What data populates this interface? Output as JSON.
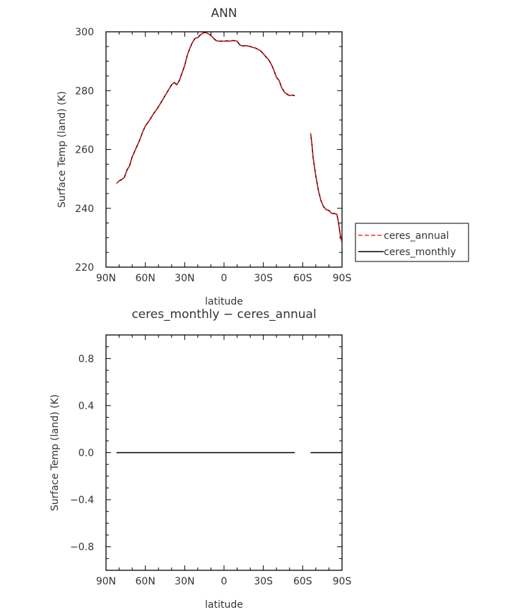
{
  "chart_data": [
    {
      "type": "line",
      "title": "ANN",
      "xlabel": "latitude",
      "ylabel": "Surface Temp (land) (K)",
      "xlim": [
        90,
        -90
      ],
      "ylim": [
        220,
        300
      ],
      "x_ticks": [
        {
          "value": 90,
          "label": "90N"
        },
        {
          "value": 60,
          "label": "60N"
        },
        {
          "value": 30,
          "label": "30N"
        },
        {
          "value": 0,
          "label": "0"
        },
        {
          "value": -30,
          "label": "30S"
        },
        {
          "value": -60,
          "label": "60S"
        },
        {
          "value": -90,
          "label": "90S"
        }
      ],
      "y_ticks": [
        {
          "value": 220,
          "label": "220"
        },
        {
          "value": 240,
          "label": "240"
        },
        {
          "value": 260,
          "label": "260"
        },
        {
          "value": 280,
          "label": "280"
        },
        {
          "value": 300,
          "label": "300"
        }
      ],
      "legend": {
        "position": "right"
      },
      "series": [
        {
          "name": "ceres_annual",
          "color": "#ff0000",
          "dash": true,
          "segments": [
            [
              [
                82,
                248.5
              ],
              [
                80,
                249.3
              ],
              [
                78,
                249.8
              ],
              [
                76,
                250.5
              ],
              [
                74,
                253
              ],
              [
                72,
                254.5
              ],
              [
                70,
                257.5
              ],
              [
                68,
                259.5
              ],
              [
                66,
                261.5
              ],
              [
                64,
                263.5
              ],
              [
                62,
                266
              ],
              [
                60,
                268
              ],
              [
                58,
                269.2
              ],
              [
                56,
                270.5
              ],
              [
                54,
                272
              ],
              [
                52,
                273.2
              ],
              [
                50,
                274.5
              ],
              [
                48,
                276
              ],
              [
                46,
                277.5
              ],
              [
                44,
                279
              ],
              [
                42,
                280.5
              ],
              [
                40,
                282
              ],
              [
                38,
                282.8
              ],
              [
                36,
                282
              ],
              [
                34,
                283.5
              ],
              [
                32,
                286
              ],
              [
                30,
                288.5
              ],
              [
                28,
                292
              ],
              [
                26,
                294.5
              ],
              [
                24,
                296.5
              ],
              [
                22,
                297.8
              ],
              [
                20,
                298
              ],
              [
                18,
                299
              ],
              [
                16,
                299.6
              ],
              [
                14,
                299.8
              ],
              [
                12,
                299.3
              ],
              [
                10,
                298.8
              ],
              [
                8,
                297.8
              ],
              [
                6,
                297
              ],
              [
                4,
                296.8
              ],
              [
                2,
                296.8
              ],
              [
                0,
                296.8
              ],
              [
                -2,
                296.9
              ],
              [
                -4,
                296.8
              ],
              [
                -6,
                297
              ],
              [
                -8,
                297
              ],
              [
                -10,
                296.8
              ],
              [
                -12,
                295.5
              ],
              [
                -14,
                295.2
              ],
              [
                -16,
                295.3
              ],
              [
                -18,
                295.2
              ],
              [
                -20,
                295
              ],
              [
                -22,
                294.7
              ],
              [
                -24,
                294.5
              ],
              [
                -26,
                294
              ],
              [
                -28,
                293.5
              ],
              [
                -30,
                292.5
              ],
              [
                -32,
                291.5
              ],
              [
                -34,
                290.5
              ],
              [
                -36,
                289
              ],
              [
                -38,
                287
              ],
              [
                -40,
                284.5
              ],
              [
                -42,
                283.5
              ],
              [
                -44,
                281
              ],
              [
                -46,
                279.5
              ],
              [
                -48,
                278.8
              ],
              [
                -50,
                278.3
              ],
              [
                -52,
                278.5
              ],
              [
                -54,
                278.3
              ]
            ],
            [
              [
                -66,
                265.5
              ],
              [
                -67,
                262
              ],
              [
                -68,
                257
              ],
              [
                -70,
                251
              ],
              [
                -72,
                246
              ],
              [
                -74,
                242.5
              ],
              [
                -76,
                240.5
              ],
              [
                -78,
                239.5
              ],
              [
                -80,
                239.3
              ],
              [
                -82,
                238.3
              ],
              [
                -84,
                238.2
              ],
              [
                -86,
                238
              ],
              [
                -87,
                236
              ],
              [
                -88,
                233
              ],
              [
                -89,
                230
              ],
              [
                -90,
                228.5
              ]
            ]
          ]
        },
        {
          "name": "ceres_monthly",
          "color": "#000000",
          "dash": false,
          "segments": [
            [
              [
                82,
                248.5
              ],
              [
                80,
                249.3
              ],
              [
                78,
                249.8
              ],
              [
                76,
                250.5
              ],
              [
                74,
                253
              ],
              [
                72,
                254.5
              ],
              [
                70,
                257.5
              ],
              [
                68,
                259.5
              ],
              [
                66,
                261.5
              ],
              [
                64,
                263.5
              ],
              [
                62,
                266
              ],
              [
                60,
                268
              ],
              [
                58,
                269.2
              ],
              [
                56,
                270.5
              ],
              [
                54,
                272
              ],
              [
                52,
                273.2
              ],
              [
                50,
                274.5
              ],
              [
                48,
                276
              ],
              [
                46,
                277.5
              ],
              [
                44,
                279
              ],
              [
                42,
                280.5
              ],
              [
                40,
                282
              ],
              [
                38,
                282.8
              ],
              [
                36,
                282
              ],
              [
                34,
                283.5
              ],
              [
                32,
                286
              ],
              [
                30,
                288.5
              ],
              [
                28,
                292
              ],
              [
                26,
                294.5
              ],
              [
                24,
                296.5
              ],
              [
                22,
                297.8
              ],
              [
                20,
                298
              ],
              [
                18,
                299
              ],
              [
                16,
                299.6
              ],
              [
                14,
                299.8
              ],
              [
                12,
                299.3
              ],
              [
                10,
                298.8
              ],
              [
                8,
                297.8
              ],
              [
                6,
                297
              ],
              [
                4,
                296.8
              ],
              [
                2,
                296.8
              ],
              [
                0,
                296.8
              ],
              [
                -2,
                296.9
              ],
              [
                -4,
                296.8
              ],
              [
                -6,
                297
              ],
              [
                -8,
                297
              ],
              [
                -10,
                296.8
              ],
              [
                -12,
                295.5
              ],
              [
                -14,
                295.2
              ],
              [
                -16,
                295.3
              ],
              [
                -18,
                295.2
              ],
              [
                -20,
                295
              ],
              [
                -22,
                294.7
              ],
              [
                -24,
                294.5
              ],
              [
                -26,
                294
              ],
              [
                -28,
                293.5
              ],
              [
                -30,
                292.5
              ],
              [
                -32,
                291.5
              ],
              [
                -34,
                290.5
              ],
              [
                -36,
                289
              ],
              [
                -38,
                287
              ],
              [
                -40,
                284.5
              ],
              [
                -42,
                283.5
              ],
              [
                -44,
                281
              ],
              [
                -46,
                279.5
              ],
              [
                -48,
                278.8
              ],
              [
                -50,
                278.3
              ],
              [
                -52,
                278.5
              ],
              [
                -54,
                278.3
              ]
            ],
            [
              [
                -66,
                265.5
              ],
              [
                -67,
                262
              ],
              [
                -68,
                257
              ],
              [
                -70,
                251
              ],
              [
                -72,
                246
              ],
              [
                -74,
                242.5
              ],
              [
                -76,
                240.5
              ],
              [
                -78,
                239.5
              ],
              [
                -80,
                239.3
              ],
              [
                -82,
                238.3
              ],
              [
                -84,
                238.2
              ],
              [
                -86,
                238
              ],
              [
                -87,
                236
              ],
              [
                -88,
                233
              ],
              [
                -89,
                230
              ],
              [
                -90,
                228.5
              ]
            ]
          ]
        }
      ]
    },
    {
      "type": "line",
      "title": "ceres_monthly − ceres_annual",
      "xlabel": "latitude",
      "ylabel": "Surface Temp (land) (K)",
      "xlim": [
        90,
        -90
      ],
      "ylim": [
        -1,
        1
      ],
      "x_ticks": [
        {
          "value": 90,
          "label": "90N"
        },
        {
          "value": 60,
          "label": "60N"
        },
        {
          "value": 30,
          "label": "30N"
        },
        {
          "value": 0,
          "label": "0"
        },
        {
          "value": -30,
          "label": "30S"
        },
        {
          "value": -60,
          "label": "60S"
        },
        {
          "value": -90,
          "label": "90S"
        }
      ],
      "y_ticks": [
        {
          "value": 0.8,
          "label": "0.8"
        },
        {
          "value": 0.4,
          "label": "0.4"
        },
        {
          "value": 0.0,
          "label": "0.0"
        },
        {
          "value": -0.4,
          "label": "−0.4"
        },
        {
          "value": -0.8,
          "label": "−0.8"
        }
      ],
      "series": [
        {
          "color": "#000000",
          "dash": false,
          "segments": [
            [
              [
                82,
                0
              ],
              [
                -54,
                0
              ]
            ],
            [
              [
                -66,
                0
              ],
              [
                -90,
                0
              ]
            ]
          ]
        }
      ]
    }
  ]
}
